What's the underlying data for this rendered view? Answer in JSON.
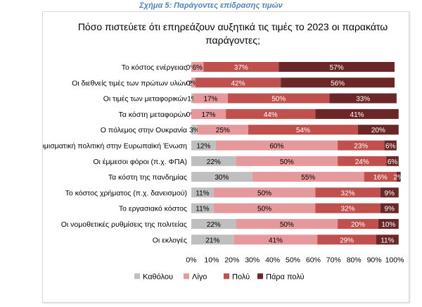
{
  "caption": "Σχήμα 5: Παράγοντες επίδρασης τιμών",
  "chart_data": {
    "type": "bar",
    "stacked": true,
    "orientation": "horizontal",
    "percent_stacked": true,
    "title": "Πόσο πιστεύετε ότι επηρεάζουν αυξητικά τις τιμές το 2023 οι παρακάτω παράγοντες;",
    "categories": [
      "Το κόστος ενέργειας",
      "Οι διεθνείς τιμές των πρώτων υλών",
      "Οι τιμές των μεταφορικών",
      "Τα κόστη μεταφορών",
      "Ο πόλεμος στην Ουκρανία",
      "Η νομισματική πολιτική στην Ευρωπαϊκή Ένωση",
      "Οι έμμεσοι φόροι (π.χ. ΦΠΑ)",
      "Τα κόστη της πανδημίας",
      "Το κόστος χρήματος (π.χ. δανεισμού)",
      "Το εργασιακό κόστος",
      "Οι νομοθετικές ρυθμίσεις της πολιτείας",
      "Οι εκλογές"
    ],
    "series": [
      {
        "name": "Καθόλου",
        "color": "#bfbfbf",
        "values": [
          0,
          0,
          1,
          0,
          3,
          12,
          22,
          30,
          11,
          11,
          22,
          21
        ],
        "labels": [
          "0%",
          "0%",
          "1%",
          "0%",
          "3%",
          "12%",
          "22%",
          "30%",
          "11%",
          "11%",
          "22%",
          "21%"
        ]
      },
      {
        "name": "Λίγο",
        "color": "#e6999c",
        "values": [
          6,
          2,
          17,
          17,
          25,
          60,
          50,
          55,
          50,
          50,
          50,
          41
        ],
        "labels": [
          "6%",
          "2%",
          "17%",
          "17%",
          "25%",
          "60%",
          "50%",
          "55%",
          "50%",
          "50%",
          "50%",
          "41%"
        ]
      },
      {
        "name": "Πολύ",
        "color": "#c0504d",
        "values": [
          37,
          42,
          50,
          44,
          54,
          23,
          24,
          16,
          32,
          32,
          20,
          29
        ],
        "labels": [
          "37%",
          "42%",
          "50%",
          "44%",
          "54%",
          "23%",
          "24%",
          "16%",
          "32%",
          "32%",
          "20%",
          "29%"
        ]
      },
      {
        "name": "Πάρα πολύ",
        "color": "#6b2627",
        "values": [
          57,
          56,
          33,
          41,
          20,
          6,
          6,
          2,
          9,
          9,
          10,
          11
        ],
        "labels": [
          "57%",
          "56%",
          "33%",
          "41%",
          "20%",
          "6%",
          "6%",
          "2%",
          "9%",
          "9%",
          "10%",
          "11%"
        ]
      }
    ],
    "xticks": [
      "0%",
      "10%",
      "20%",
      "30%",
      "40%",
      "50%",
      "60%",
      "70%",
      "80%",
      "90%",
      "100%"
    ],
    "xlim": [
      0,
      100
    ],
    "grid": false,
    "legend": "bottom"
  }
}
